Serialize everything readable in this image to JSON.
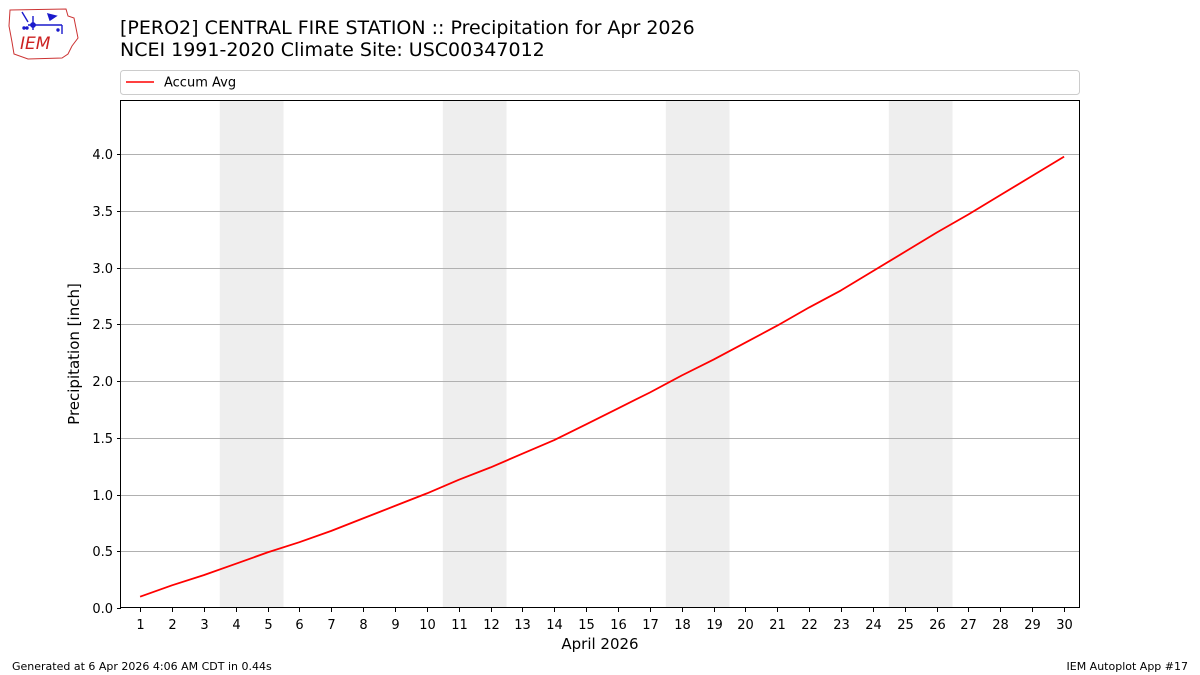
{
  "header": {
    "title_line1": "[PERO2] CENTRAL FIRE STATION :: Precipitation for Apr 2026",
    "title_line2": "NCEI 1991-2020 Climate Site: USC00347012",
    "logo_text": "IEM"
  },
  "footer": {
    "generated": "Generated at 6 Apr 2026 4:06 AM CDT in 0.44s",
    "app": "IEM Autoplot App #17"
  },
  "chart_data": {
    "type": "line",
    "title": "[PERO2] CENTRAL FIRE STATION :: Precipitation for Apr 2026",
    "subtitle": "NCEI 1991-2020 Climate Site: USC00347012",
    "xlabel": "April 2026",
    "ylabel": "Precipitation [inch]",
    "xlim": [
      0.4,
      30.5
    ],
    "ylim": [
      0,
      4.47
    ],
    "yticks": [
      0.0,
      0.5,
      1.0,
      1.5,
      2.0,
      2.5,
      3.0,
      3.5,
      4.0
    ],
    "ytick_labels": [
      "0.0",
      "0.5",
      "1.0",
      "1.5",
      "2.0",
      "2.5",
      "3.0",
      "3.5",
      "4.0"
    ],
    "xticks": [
      1,
      2,
      3,
      4,
      5,
      6,
      7,
      8,
      9,
      10,
      11,
      12,
      13,
      14,
      15,
      16,
      17,
      18,
      19,
      20,
      21,
      22,
      23,
      24,
      25,
      26,
      27,
      28,
      29,
      30
    ],
    "xtick_labels": [
      "1",
      "2",
      "3",
      "4",
      "5",
      "6",
      "7",
      "8",
      "9",
      "10",
      "11",
      "12",
      "13",
      "14",
      "15",
      "16",
      "17",
      "18",
      "19",
      "20",
      "21",
      "22",
      "23",
      "24",
      "25",
      "26",
      "27",
      "28",
      "29",
      "30"
    ],
    "grid": "y",
    "legend_position": "top",
    "weekend_bands": [
      [
        3.5,
        5.5
      ],
      [
        10.5,
        12.5
      ],
      [
        17.5,
        19.5
      ],
      [
        24.5,
        26.5
      ]
    ],
    "band_color": "#eeeeee",
    "series": [
      {
        "name": "Accum Avg",
        "color": "#ff0000",
        "x": [
          1,
          2,
          3,
          4,
          5,
          6,
          7,
          8,
          9,
          10,
          11,
          12,
          13,
          14,
          15,
          16,
          17,
          18,
          19,
          20,
          21,
          22,
          23,
          24,
          25,
          26,
          27,
          28,
          29,
          30
        ],
        "values": [
          0.1,
          0.2,
          0.29,
          0.39,
          0.49,
          0.58,
          0.68,
          0.79,
          0.9,
          1.01,
          1.13,
          1.24,
          1.36,
          1.48,
          1.62,
          1.76,
          1.9,
          2.05,
          2.19,
          2.34,
          2.49,
          2.65,
          2.8,
          2.97,
          3.14,
          3.31,
          3.47,
          3.64,
          3.81,
          3.98
        ]
      }
    ]
  }
}
